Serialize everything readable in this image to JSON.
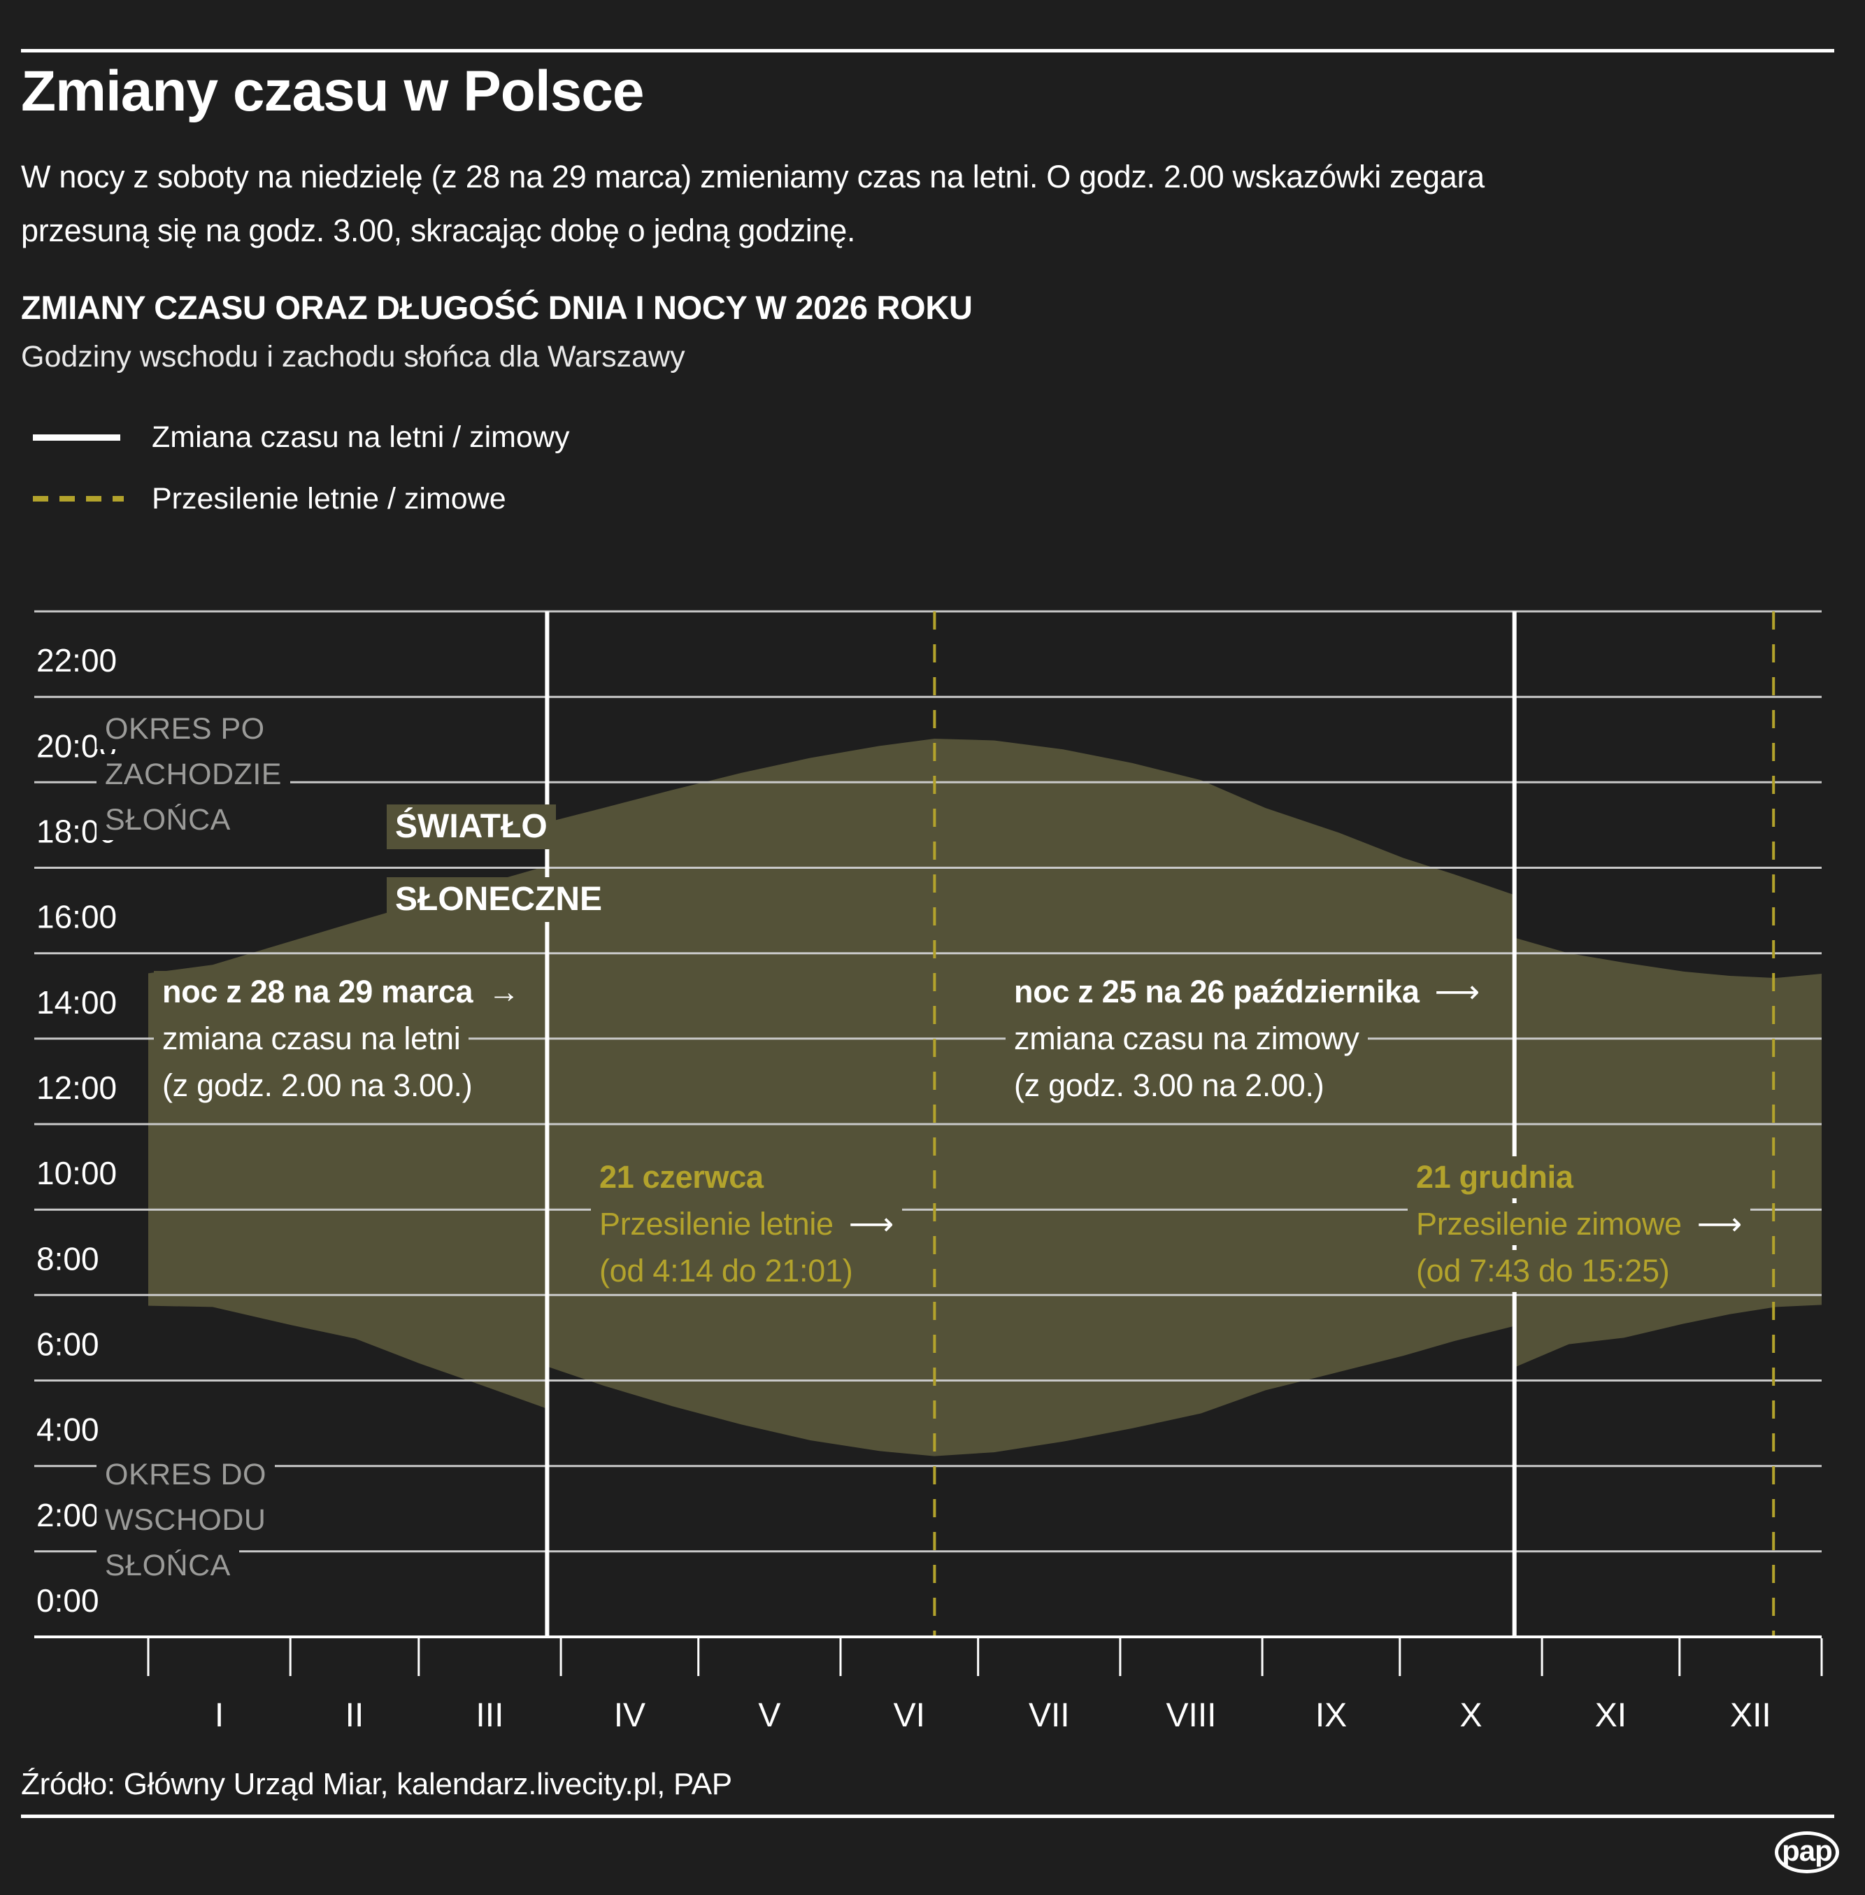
{
  "page": {
    "colors": {
      "background": "#1e1e1e",
      "daylight_area": "#545238",
      "accent_yellow": "#b3a32c",
      "gridline": "#c9c9c9",
      "muted_gray": "#9b9b99",
      "white": "#ffffff"
    }
  },
  "header": {
    "title": "Zmiany czasu w Polsce",
    "intro_line1": "W nocy z soboty na niedzielę (z 28 na 29 marca) zmieniamy czas na letni. O godz. 2.00 wskazówki zegara",
    "intro_line2": "przesuną się na godz. 3.00, skracając dobę o jedną godzinę.",
    "section_title": "ZMIANY CZASU ORAZ DŁUGOŚĆ DNIA I NOCY W 2026 ROKU",
    "section_subtitle": "Godziny wschodu i zachodu słońca dla Warszawy"
  },
  "legend": {
    "items": [
      {
        "swatch": "solid-white-line",
        "label": "Zmiana czasu na letni / zimowy"
      },
      {
        "swatch": "dashed-yellow-line",
        "label": "Przesilenie letnie / zimowe"
      }
    ]
  },
  "chart_data": {
    "type": "area",
    "title": "ZMIANY CZASU ORAZ DŁUGOŚĆ DNIA I NOCY W 2026 ROKU",
    "subtitle": "Godziny wschodu i zachodu słońca dla Warszawy",
    "x_axis": {
      "unit": "month",
      "categories": [
        "I",
        "II",
        "III",
        "IV",
        "V",
        "VI",
        "VII",
        "VIII",
        "IX",
        "X",
        "XI",
        "XII"
      ],
      "month_boundary_days": [
        0,
        31,
        59,
        90,
        120,
        151,
        181,
        212,
        243,
        273,
        304,
        334,
        365
      ]
    },
    "y_axis": {
      "unit": "hour_of_day",
      "tick_labels": [
        "0:00",
        "2:00",
        "4:00",
        "6:00",
        "8:00",
        "10:00",
        "12:00",
        "14:00",
        "16:00",
        "18:00",
        "20:00",
        "22:00"
      ],
      "tick_hours": [
        0,
        2,
        4,
        6,
        8,
        10,
        12,
        14,
        16,
        18,
        20,
        22
      ],
      "ylim": [
        0,
        24
      ],
      "grid": true
    },
    "series_note": "points are [day_of_year, sunrise_hour, sunset_hour] in local clock time; duplicated days mark DST jumps",
    "points": [
      [
        1,
        7.75,
        15.53
      ],
      [
        15,
        7.72,
        15.73
      ],
      [
        32,
        7.3,
        16.28
      ],
      [
        46,
        6.98,
        16.73
      ],
      [
        60,
        6.4,
        17.17
      ],
      [
        74,
        5.87,
        17.62
      ],
      [
        88,
        5.33,
        18.05
      ],
      [
        88,
        6.32,
        19.07
      ],
      [
        100,
        5.88,
        19.4
      ],
      [
        115,
        5.4,
        19.82
      ],
      [
        130,
        4.97,
        20.22
      ],
      [
        145,
        4.6,
        20.57
      ],
      [
        160,
        4.35,
        20.85
      ],
      [
        172,
        4.23,
        21.02
      ],
      [
        185,
        4.32,
        20.98
      ],
      [
        200,
        4.57,
        20.77
      ],
      [
        215,
        4.88,
        20.45
      ],
      [
        230,
        5.23,
        20.05
      ],
      [
        244,
        5.77,
        19.4
      ],
      [
        260,
        6.2,
        18.82
      ],
      [
        274,
        6.58,
        18.23
      ],
      [
        285,
        6.92,
        17.85
      ],
      [
        298,
        7.27,
        17.37
      ],
      [
        298,
        6.3,
        16.37
      ],
      [
        310,
        6.85,
        16.0
      ],
      [
        322,
        7.0,
        15.78
      ],
      [
        335,
        7.33,
        15.57
      ],
      [
        345,
        7.55,
        15.47
      ],
      [
        355,
        7.72,
        15.42
      ],
      [
        365,
        7.77,
        15.52
      ]
    ],
    "events": [
      {
        "id": "march-change",
        "day": 87,
        "line_style": "solid-white",
        "label": "noc z 28 na 29 marca",
        "desc": "zmiana czasu na letni",
        "detail": "(z godz. 2.00 na 3.00.)"
      },
      {
        "id": "summer-solstice",
        "day": 171.5,
        "line_style": "dashed-yellow",
        "label": "21 czerwca",
        "desc": "Przesilenie letnie",
        "detail": "(od 4:14 do 21:01)"
      },
      {
        "id": "october-change",
        "day": 298,
        "line_style": "solid-white",
        "label": "noc z 25 na 26 października",
        "desc": "zmiana czasu na zimowy",
        "detail": "(z godz. 3.00 na 2.00.)"
      },
      {
        "id": "winter-solstice",
        "day": 354.5,
        "line_style": "dashed-yellow",
        "label": "21 grudnia",
        "desc": "Przesilenie zimowe",
        "detail": "(od 7:43 do 15:25)"
      }
    ],
    "area_label": {
      "line1": "ŚWIATŁO",
      "line2": "SŁONECZNE"
    },
    "region_after_sunset": {
      "line1": "OKRES PO",
      "line2": "ZACHODZIE",
      "line3": "SŁOŃCA"
    },
    "region_before_sunrise": {
      "line1": "OKRES DO",
      "line2": "WSCHODU",
      "line3": "SŁOŃCA"
    },
    "icons": {
      "arrow_right": "→",
      "arrow_right_long": "⟶"
    }
  },
  "footer": {
    "source": "Źródło: Główny Urząd Miar, kalendarz.livecity.pl, PAP",
    "logo_text": "pap"
  }
}
